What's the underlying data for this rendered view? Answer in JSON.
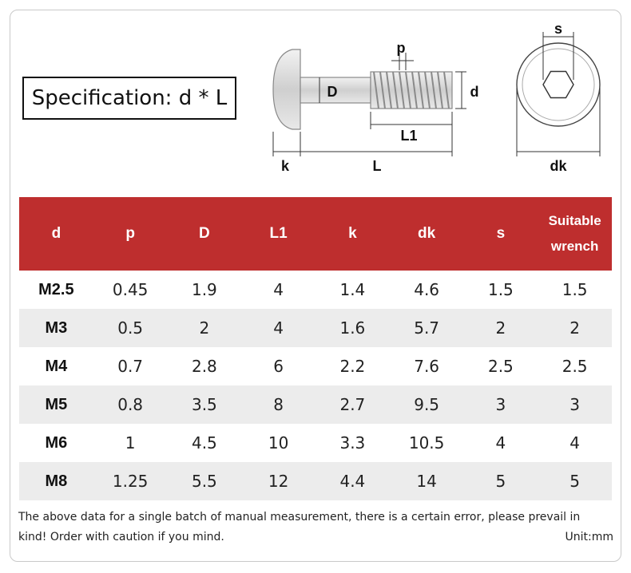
{
  "spec_label": "Specification: d * L",
  "diagram": {
    "label_p": "p",
    "label_D": "D",
    "label_d": "d",
    "label_L1": "L1",
    "label_k": "k",
    "label_L": "L",
    "label_s": "s",
    "label_dk": "dk"
  },
  "table": {
    "headers": [
      "d",
      "p",
      "D",
      "L1",
      "k",
      "dk",
      "s"
    ],
    "header_wrench_line1": "Suitable",
    "header_wrench_line2": "wrench",
    "rows": [
      [
        "M2.5",
        "0.45",
        "1.9",
        "4",
        "1.4",
        "4.6",
        "1.5",
        "1.5"
      ],
      [
        "M3",
        "0.5",
        "2",
        "4",
        "1.6",
        "5.7",
        "2",
        "2"
      ],
      [
        "M4",
        "0.7",
        "2.8",
        "6",
        "2.2",
        "7.6",
        "2.5",
        "2.5"
      ],
      [
        "M5",
        "0.8",
        "3.5",
        "8",
        "2.7",
        "9.5",
        "3",
        "3"
      ],
      [
        "M6",
        "1",
        "4.5",
        "10",
        "3.3",
        "10.5",
        "4",
        "4"
      ],
      [
        "M8",
        "1.25",
        "5.5",
        "12",
        "4.4",
        "14",
        "5",
        "5"
      ]
    ]
  },
  "colors": {
    "header_bg": "#be2e2e",
    "alt_row_bg": "#ececec"
  },
  "note": "The above data for a single batch of manual measurement, there is a certain error, please prevail in kind! Order with caution if you mind.",
  "unit": "Unit:mm"
}
